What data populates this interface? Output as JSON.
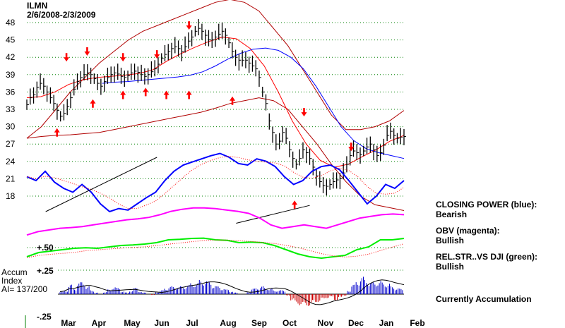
{
  "chart_data": {
    "type": "candlestick",
    "title": "ILMN",
    "subtitle": "2/6/2008-2/3/2009",
    "price_axis": {
      "ticks": [
        "48",
        "45",
        "42",
        "39",
        "36",
        "33",
        "30",
        "27",
        "24",
        "21",
        "18"
      ],
      "tick_values": [
        48,
        45,
        42,
        39,
        36,
        33,
        30,
        27,
        24,
        21,
        18
      ],
      "ylim": [
        16,
        50
      ]
    },
    "month_labels": [
      "Mar",
      "Apr",
      "May",
      "Jun",
      "Jul",
      "Aug",
      "Sep",
      "Oct",
      "Nov",
      "Dec",
      "Jan",
      "Feb"
    ],
    "price_close": [
      33.8,
      35.0,
      35.5,
      36.8,
      37.5,
      37.0,
      36.0,
      35.0,
      34.0,
      32.8,
      31.8,
      32.3,
      33.5,
      35.0,
      36.5,
      37.8,
      38.5,
      39.0,
      39.3,
      39.0,
      38.3,
      37.5,
      37.0,
      37.8,
      38.5,
      39.0,
      39.3,
      39.1,
      38.7,
      38.5,
      38.8,
      39.3,
      39.6,
      39.4,
      39.0,
      38.7,
      39.0,
      39.5,
      40.0,
      40.8,
      41.8,
      42.5,
      43.0,
      43.5,
      43.8,
      43.5,
      43.0,
      43.8,
      44.8,
      45.5,
      46.5,
      47.0,
      46.5,
      45.8,
      45.0,
      45.0,
      45.5,
      46.0,
      46.5,
      45.8,
      44.5,
      43.0,
      42.0,
      41.5,
      41.5,
      41.5,
      41.0,
      40.5,
      40.0,
      38.5,
      36.0,
      34.0,
      31.0,
      29.0,
      27.0,
      27.5,
      29.0,
      28.0,
      26.0,
      24.5,
      23.5,
      24.5,
      26.0,
      25.5,
      24.5,
      23.0,
      21.5,
      20.5,
      19.8,
      19.7,
      20.0,
      20.5,
      20.8,
      21.0,
      22.0,
      23.5,
      25.0,
      25.8,
      25.5,
      25.2,
      25.8,
      26.5,
      27.0,
      26.0,
      25.0,
      25.5,
      26.8,
      28.5,
      29.2,
      28.5,
      28.0,
      28.2,
      28.3
    ],
    "bollinger_upper": [
      28,
      30,
      33,
      36,
      38.5,
      41,
      43,
      45,
      46.5,
      47.5,
      48.5,
      49.5,
      50.5,
      51.5,
      52,
      51.5,
      50,
      47,
      44,
      40,
      36,
      32,
      29.5,
      29.5,
      30,
      31,
      32.8
    ],
    "bollinger_lower": [
      28,
      28.3,
      28.5,
      28.6,
      28.8,
      29,
      29.5,
      30,
      30.5,
      31,
      31.5,
      32,
      32.5,
      33.2,
      34,
      34.5,
      35,
      34.5,
      33,
      30,
      27,
      23.5,
      20.5,
      18,
      16.5,
      16,
      15.5
    ],
    "ma_red": [
      35,
      35.2,
      36,
      37.3,
      38.1,
      38.5,
      38.7,
      38.9,
      39.2,
      39.8,
      41.3,
      42.6,
      43.7,
      44.7,
      45.5,
      45.2,
      43.5,
      40.5,
      36,
      31,
      27,
      24.2,
      23,
      23.5,
      24.8,
      26,
      27.5,
      28.5
    ],
    "ma_blue": [
      37.5,
      37.7,
      37.8,
      38,
      38.2,
      38.4,
      38.6,
      38.9,
      39.5,
      40.5,
      41.7,
      42.7,
      43.4,
      43.6,
      43.2,
      42,
      40,
      37,
      33.5,
      30,
      27.6,
      26.2,
      25.5,
      25,
      24.5
    ],
    "arrows_down": [
      [
        0.105,
        42
      ],
      [
        0.16,
        43
      ],
      [
        0.255,
        42
      ],
      [
        0.345,
        42.5
      ],
      [
        0.43,
        47.5
      ],
      [
        0.735,
        32.5
      ],
      [
        0.86,
        26.5
      ]
    ],
    "arrows_up": [
      [
        0.08,
        29
      ],
      [
        0.175,
        34
      ],
      [
        0.255,
        35.5
      ],
      [
        0.315,
        36
      ],
      [
        0.37,
        35.5
      ],
      [
        0.43,
        35.5
      ],
      [
        0.545,
        34.5
      ],
      [
        0.71,
        16.5
      ]
    ],
    "closing_power": {
      "label": "CLOSING POWER (blue):",
      "status": "Bearish",
      "values": [
        0.65,
        0.6,
        0.72,
        0.58,
        0.5,
        0.45,
        0.55,
        0.45,
        0.3,
        0.2,
        0.24,
        0.22,
        0.3,
        0.38,
        0.45,
        0.6,
        0.72,
        0.8,
        0.84,
        0.88,
        0.92,
        0.95,
        0.9,
        0.82,
        0.8,
        0.88,
        0.85,
        0.78,
        0.65,
        0.55,
        0.6,
        0.72,
        0.78,
        0.8,
        0.74,
        0.6,
        0.45,
        0.3,
        0.4,
        0.55,
        0.5,
        0.6
      ],
      "trendline_1": [
        [
          0.05,
          0.2
        ],
        [
          0.345,
          0.9
        ]
      ],
      "trendline_2": [
        [
          0.555,
          0.05
        ],
        [
          0.75,
          0.28
        ]
      ]
    },
    "obv": {
      "label": "OBV (magenta):",
      "status": "Bullish",
      "values": [
        0.1,
        0.2,
        0.25,
        0.3,
        0.32,
        0.35,
        0.4,
        0.45,
        0.5,
        0.55,
        0.58,
        0.62,
        0.7,
        0.8,
        0.86,
        0.9,
        0.9,
        0.88,
        0.84,
        0.8,
        0.74,
        0.6,
        0.4,
        0.3,
        0.35,
        0.4,
        0.35,
        0.3,
        0.4,
        0.5,
        0.6,
        0.65,
        0.7,
        0.72,
        0.7
      ]
    },
    "relative_strength": {
      "label": "REL.STR..VS DJI (green):",
      "status": "Bullish",
      "ref_label": "+.50",
      "values": [
        0.2,
        0.35,
        0.4,
        0.45,
        0.5,
        0.52,
        0.5,
        0.55,
        0.6,
        0.62,
        0.65,
        0.7,
        0.8,
        0.82,
        0.85,
        0.86,
        0.8,
        0.78,
        0.7,
        0.72,
        0.7,
        0.6,
        0.45,
        0.3,
        0.2,
        0.15,
        0.2,
        0.25,
        0.45,
        0.55,
        0.8,
        0.8,
        0.85
      ]
    },
    "accumulation": {
      "title_lines": [
        "Accum",
        "Index",
        "AI= 137/200"
      ],
      "status": "Currently Accumulation",
      "ticks": [
        "+.25",
        "-.25"
      ],
      "ylim": [
        -0.25,
        0.25
      ],
      "values": [
        0.03,
        0.05,
        0.12,
        0.08,
        0.15,
        0.16,
        0.1,
        0.05,
        0.02,
        0.0,
        0.03,
        0.06,
        0.1,
        0.08,
        0.04,
        0.02,
        0.05,
        0.08,
        0.04,
        0.02,
        0.0,
        -0.01,
        0.03,
        0.05,
        0.08,
        0.1,
        0.1,
        0.1,
        0.1,
        0.12,
        0.14,
        0.15,
        0.18,
        0.18,
        0.16,
        0.12,
        0.1,
        0.08,
        0.06,
        0.04,
        0.02,
        0.0,
        0.0,
        0.03,
        0.07,
        0.09,
        0.1,
        0.09,
        0.07,
        0.05,
        0.05,
        0.05,
        -0.02,
        -0.08,
        -0.13,
        -0.14,
        -0.16,
        -0.15,
        -0.12,
        -0.1,
        -0.07,
        -0.05,
        -0.04,
        -0.08,
        -0.05,
        -0.02,
        0.05,
        0.12,
        0.18,
        0.22,
        0.2,
        0.15,
        0.16,
        0.17,
        0.15,
        0.14,
        0.1,
        0.08,
        0.07
      ]
    },
    "colors": {
      "price_bars": "#000000",
      "bollinger": "#b00000",
      "ma_red": "#ff0000",
      "ma_blue": "#0000ff",
      "arrows": "#ff0000",
      "closing_power": "#0000ff",
      "obv": "#ff00ff",
      "relative_strength": "#00ee00",
      "accum_positive": "#0000cc",
      "accum_negative": "#cc0000",
      "grid": "#008000",
      "trendline": "#000000"
    },
    "grid": true
  }
}
